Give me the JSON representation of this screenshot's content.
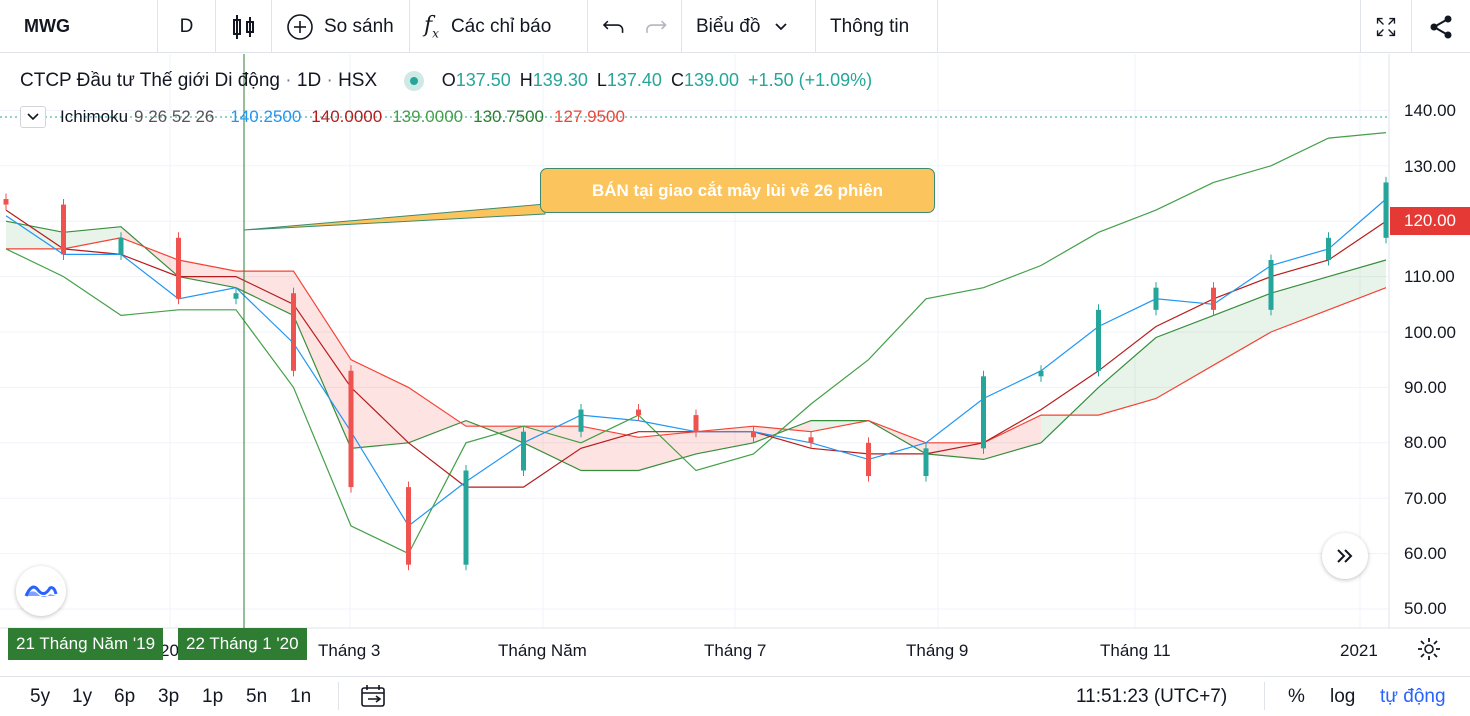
{
  "toolbar": {
    "symbol": "MWG",
    "interval": "D",
    "compare_label": "So sánh",
    "indicators_label": "Các chỉ báo",
    "chart_type_label": "Biểu đồ",
    "info_label": "Thông tin"
  },
  "legend": {
    "title": "CTCP Đầu tư Thế giới Di động",
    "sep": "·",
    "timeframe": "1D",
    "exchange": "HSX",
    "o_label": "O",
    "o": "137.50",
    "h_label": "H",
    "h": "139.30",
    "l_label": "L",
    "l": "137.40",
    "c_label": "C",
    "c": "139.00",
    "change": "+1.50 (+1.09%)",
    "indicator_name": "Ichimoku",
    "indicator_params": "9 26 52 26",
    "ind_values": [
      "140.2500",
      "140.0000",
      "139.0000",
      "130.7500",
      "127.9500"
    ]
  },
  "colors": {
    "conversion": "#2196f3",
    "base": "#b71c1c",
    "lagging": "#43a047",
    "span_a": "#388e3c",
    "span_b": "#f44336",
    "cloud_bull": "rgba(67,160,71,0.12)",
    "cloud_bear": "rgba(244,67,54,0.15)",
    "up": "#26a69a",
    "down": "#ef5350",
    "accent": "#2962ff"
  },
  "annotation": "BÁN tại giao cắt mây lùi về 26 phiên",
  "price_badge": "120.00",
  "crosshair_labels": [
    "21 Tháng Năm '19",
    "22 Tháng 1 '20"
  ],
  "x_ticks": [
    "20",
    "Tháng 3",
    "Tháng Năm",
    "Tháng 7",
    "Tháng 9",
    "Tháng 11",
    "2021"
  ],
  "y_ticks": [
    "140.00",
    "130.00",
    "110.00",
    "100.00",
    "90.00",
    "80.00",
    "70.00",
    "60.00",
    "50.00"
  ],
  "bottom": {
    "ranges": [
      "5y",
      "1y",
      "6p",
      "3p",
      "1p",
      "5n",
      "1n"
    ],
    "time": "11:51:23 (UTC+7)",
    "percent": "%",
    "log": "log",
    "auto": "tự động"
  },
  "chart_data": {
    "type": "line",
    "ylim": [
      48,
      143
    ],
    "x": [
      "2019-12",
      "2020-01-07",
      "2020-01-22",
      "2020-02",
      "2020-03",
      "2020-03-15",
      "2020-04-01",
      "2020-04-15",
      "2020-05",
      "2020-05-15",
      "2020-06",
      "2020-06-15",
      "2020-07",
      "2020-07-15",
      "2020-08",
      "2020-08-15",
      "2020-09",
      "2020-09-15",
      "2020-10",
      "2020-10-15",
      "2020-11",
      "2020-11-15",
      "2020-12",
      "2020-12-15",
      "2021-01"
    ],
    "series": [
      {
        "name": "close",
        "values": [
          123,
          114,
          117,
          106,
          107,
          93,
          72,
          58,
          75,
          82,
          86,
          85,
          82,
          81,
          80,
          74,
          79,
          92,
          93,
          104,
          108,
          104,
          113,
          117,
          127
        ]
      },
      {
        "name": "conversion",
        "values": [
          121,
          114,
          114,
          106,
          108,
          98,
          82,
          65,
          73,
          80,
          85,
          84,
          82,
          82,
          80,
          77,
          80,
          88,
          93,
          101,
          106,
          105,
          112,
          115,
          124
        ]
      },
      {
        "name": "base",
        "values": [
          122,
          115,
          114,
          110,
          110,
          105,
          90,
          80,
          72,
          72,
          79,
          82,
          82,
          82,
          79,
          78,
          78,
          80,
          86,
          93,
          101,
          106,
          110,
          113,
          120
        ]
      },
      {
        "name": "lagging",
        "values": [
          115,
          110,
          103,
          104,
          104,
          90,
          65,
          60,
          80,
          83,
          80,
          85,
          75,
          78,
          87,
          95,
          106,
          108,
          112,
          118,
          122,
          127,
          130,
          135,
          136
        ]
      },
      {
        "name": "span_a",
        "values": [
          120,
          118,
          119,
          110,
          108,
          103,
          79,
          80,
          84,
          80,
          75,
          75,
          78,
          80,
          84,
          84,
          78,
          77,
          80,
          90,
          99,
          103,
          107,
          110,
          113
        ]
      },
      {
        "name": "span_b",
        "values": [
          115,
          115,
          117,
          113,
          111,
          111,
          95,
          90,
          83,
          83,
          83,
          81,
          82,
          83,
          82,
          84,
          80,
          80,
          85,
          85,
          88,
          94,
          100,
          104,
          108
        ]
      }
    ]
  }
}
